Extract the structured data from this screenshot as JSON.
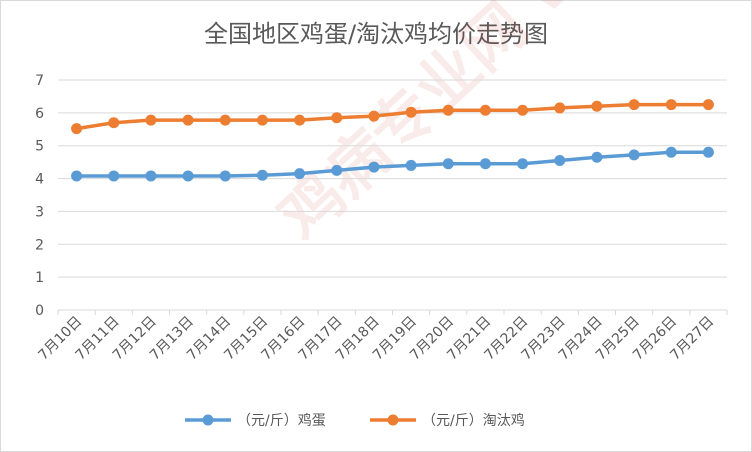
{
  "chart_data": {
    "type": "line",
    "title": "全国地区鸡蛋/淘汰鸡均价走势图",
    "categories": [
      "7月10日",
      "7月11日",
      "7月12日",
      "7月13日",
      "7月14日",
      "7月15日",
      "7月16日",
      "7月17日",
      "7月18日",
      "7月19日",
      "7月20日",
      "7月21日",
      "7月22日",
      "7月23日",
      "7月24日",
      "7月25日",
      "7月26日",
      "7月27日"
    ],
    "ylim": [
      0,
      7
    ],
    "yticks": [
      0,
      1,
      2,
      3,
      4,
      5,
      6,
      7
    ],
    "grid": true,
    "legend_position": "bottom",
    "series": [
      {
        "name": "（元/斤）鸡蛋",
        "color": "#5b9bd5",
        "values": [
          4.08,
          4.08,
          4.08,
          4.08,
          4.08,
          4.1,
          4.15,
          4.25,
          4.35,
          4.4,
          4.45,
          4.45,
          4.45,
          4.55,
          4.65,
          4.72,
          4.8,
          4.8
        ]
      },
      {
        "name": "（元/斤）淘汰鸡",
        "color": "#ed7d31",
        "values": [
          5.52,
          5.7,
          5.78,
          5.78,
          5.78,
          5.78,
          5.78,
          5.85,
          5.9,
          6.02,
          6.08,
          6.08,
          6.08,
          6.15,
          6.2,
          6.25,
          6.25,
          6.25
        ]
      }
    ]
  },
  "watermark": "鸡病专业网 www.jbzyw.com"
}
